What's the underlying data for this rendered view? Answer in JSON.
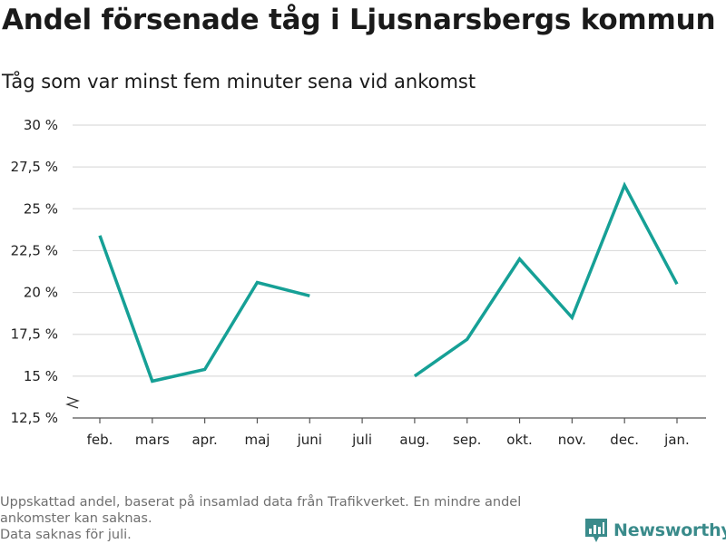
{
  "header": {
    "title": "Andel försenade tåg i Ljusnarsbergs kommun",
    "subtitle": "Tåg som var minst fem minuter sena vid ankomst"
  },
  "footnote": {
    "line1": "Uppskattad andel, baserat på insamlad data från Trafikverket. En mindre andel ankomster kan saknas.",
    "line2": "Data saknas för juli."
  },
  "brand": {
    "name": "Newsworthy",
    "icon": "bar-chart-logo-icon",
    "color": "#3a8b8b"
  },
  "chart_data": {
    "type": "line",
    "title": "Andel försenade tåg i Ljusnarsbergs kommun",
    "subtitle": "Tåg som var minst fem minuter sena vid ankomst",
    "categories": [
      "feb.",
      "mars",
      "apr.",
      "maj",
      "juni",
      "juli",
      "aug.",
      "sep.",
      "okt.",
      "nov.",
      "dec.",
      "jan."
    ],
    "series": [
      {
        "values": [
          23.4,
          14.7,
          15.4,
          20.6,
          19.8,
          null,
          15.0,
          17.2,
          22.0,
          18.5,
          26.4,
          20.5
        ]
      }
    ],
    "yticks": [
      12.5,
      15,
      17.5,
      20,
      22.5,
      25,
      27.5,
      30
    ],
    "ytick_labels": [
      "12,5 %",
      "15 %",
      "17,5 %",
      "20 %",
      "22,5 %",
      "25 %",
      "27,5 %",
      "30 %"
    ],
    "ylim": [
      12.5,
      30
    ],
    "axis_break": true,
    "grid": true,
    "line_color": "#16a096"
  }
}
